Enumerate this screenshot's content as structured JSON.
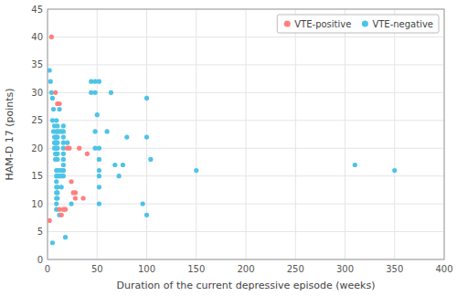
{
  "chart_data": {
    "type": "scatter",
    "x_label": "Duration of the current depressive episode (weeks)",
    "y_label": "HAM-D 17 (points)",
    "series": [
      {
        "name": "VTE-negative",
        "color": "#4DC3E8",
        "x": [
          2,
          3,
          4,
          5,
          5,
          5,
          6,
          6,
          7,
          7,
          7,
          7,
          8,
          8,
          8,
          8,
          8,
          9,
          9,
          9,
          9,
          9,
          9,
          9,
          9,
          9,
          9,
          9,
          9,
          9,
          9,
          9,
          9,
          10,
          10,
          10,
          10,
          10,
          10,
          10,
          10,
          10,
          10,
          10,
          10,
          12,
          12,
          12,
          12,
          12,
          14,
          14,
          14,
          14,
          16,
          16,
          16,
          16,
          16,
          16,
          16,
          16,
          16,
          16,
          16,
          18,
          20,
          24,
          44,
          44,
          48,
          48,
          48,
          48,
          50,
          52,
          52,
          52,
          52,
          52,
          52,
          52,
          60,
          64,
          68,
          72,
          76,
          80,
          96,
          100,
          100,
          100,
          104,
          150,
          310,
          350
        ],
        "values": [
          34,
          32,
          30,
          3,
          29,
          25,
          27,
          23,
          24,
          22,
          21,
          20,
          22,
          21,
          20,
          19,
          18,
          18,
          25,
          23,
          22,
          21,
          20,
          19,
          18,
          16,
          15,
          14,
          13,
          12,
          11,
          10,
          9,
          24,
          23,
          22,
          21,
          20,
          19,
          18,
          16,
          15,
          13,
          12,
          11,
          27,
          23,
          16,
          15,
          8,
          23,
          16,
          15,
          13,
          24,
          23,
          22,
          21,
          20,
          19,
          18,
          17,
          16,
          15,
          16,
          4,
          21,
          10,
          32,
          30,
          32,
          30,
          23,
          20,
          26,
          32,
          20,
          18,
          16,
          15,
          13,
          10,
          23,
          30,
          17,
          15,
          17,
          22,
          10,
          29,
          22,
          8,
          18,
          16,
          17,
          16
        ]
      },
      {
        "name": "VTE-positive",
        "color": "#FF7F7F",
        "x": [
          2,
          4,
          8,
          10,
          12,
          12,
          14,
          16,
          18,
          20,
          22,
          24,
          26,
          28,
          28,
          32,
          36,
          40
        ],
        "values": [
          7,
          40,
          30,
          28,
          9,
          28,
          8,
          9,
          9,
          20,
          20,
          14,
          12,
          12,
          11,
          20,
          11,
          19
        ]
      }
    ],
    "xlim": [
      0,
      400
    ],
    "ylim": [
      0,
      45
    ],
    "xticks": [
      0,
      50,
      100,
      150,
      200,
      250,
      300,
      350,
      400
    ],
    "yticks": [
      0,
      5,
      10,
      15,
      20,
      25,
      30,
      35,
      40,
      45
    ],
    "grid": true,
    "legend": "upper right"
  }
}
